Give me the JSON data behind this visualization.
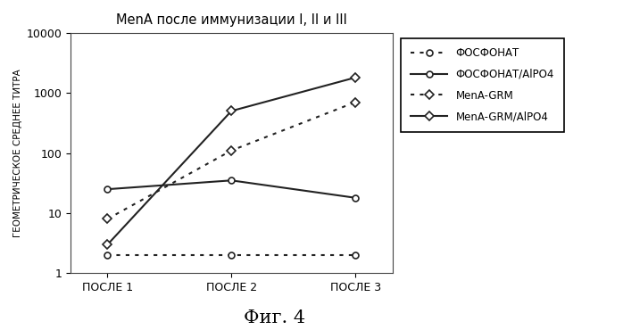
{
  "title": "MenA после иммунизации I, II и III",
  "ylabel": "ГЕОМЕТРИЧЕСКОЕ СРЕДНЕЕ ТИТРА",
  "xlabel_ticks": [
    "ПОСЛЕ 1",
    "ПОСЛЕ 2",
    "ПОСЛЕ 3"
  ],
  "x_values": [
    0,
    1,
    2
  ],
  "series": [
    {
      "label": "ФОСФОНАТ",
      "y": [
        2.0,
        2.0,
        2.0
      ],
      "linestyle_idx": 0,
      "marker": "o",
      "markersize": 5
    },
    {
      "label": "ФОСФОНАТ/AlPO4",
      "y": [
        25,
        35,
        18
      ],
      "linestyle_idx": 1,
      "marker": "o",
      "markersize": 5
    },
    {
      "label": "MenA-GRM",
      "y": [
        8,
        110,
        700
      ],
      "linestyle_idx": 0,
      "marker": "D",
      "markersize": 5
    },
    {
      "label": "MenA-GRM/AlPO4",
      "y": [
        3,
        500,
        1800
      ],
      "linestyle_idx": 1,
      "marker": "D",
      "markersize": 5
    }
  ],
  "ylim": [
    1,
    10000
  ],
  "yticks": [
    1,
    10,
    100,
    1000,
    10000
  ],
  "ytick_labels": [
    "1",
    "10",
    "100",
    "1000",
    "10000"
  ],
  "caption": "Фиг. 4",
  "line_color": "#222222",
  "linewidth": 1.5,
  "background_color": "#ffffff",
  "plot_background": "#ffffff"
}
